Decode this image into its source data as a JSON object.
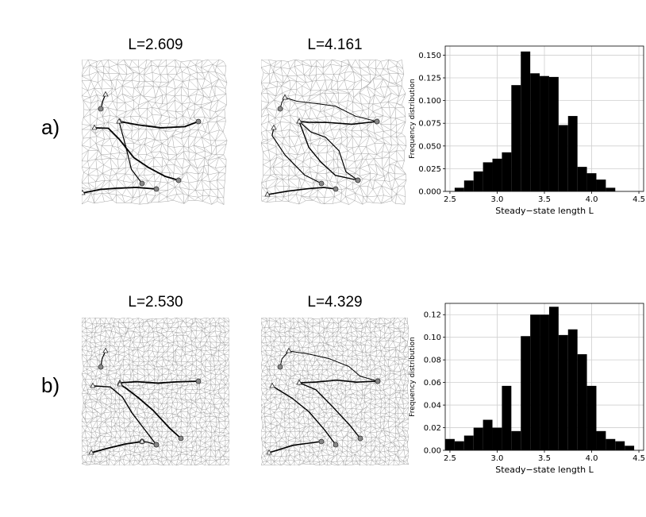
{
  "rows": [
    {
      "label": "a)",
      "panels": [
        {
          "title": "L=2.609"
        },
        {
          "title": "L=4.161"
        }
      ]
    },
    {
      "label": "b)",
      "panels": [
        {
          "title": "L=2.530"
        },
        {
          "title": "L=4.329"
        }
      ]
    }
  ],
  "chart_data": [
    {
      "type": "bar",
      "xlabel": "Steady−state length L",
      "ylabel": "Frequency distribution",
      "xlim": [
        2.45,
        4.55
      ],
      "ylim": [
        0,
        0.16
      ],
      "xticks": [
        "2.5",
        "3.0",
        "3.5",
        "4.0",
        "4.5"
      ],
      "yticks": [
        "0.000",
        "0.025",
        "0.050",
        "0.075",
        "0.100",
        "0.125",
        "0.150"
      ],
      "grid": true,
      "bar_color": "#000000",
      "bins": [
        2.6,
        2.7,
        2.8,
        2.9,
        3.0,
        3.1,
        3.2,
        3.3,
        3.4,
        3.5,
        3.6,
        3.7,
        3.8,
        3.9,
        4.0,
        4.1,
        4.2
      ],
      "values": [
        0.004,
        0.012,
        0.022,
        0.032,
        0.036,
        0.043,
        0.117,
        0.154,
        0.13,
        0.127,
        0.126,
        0.073,
        0.083,
        0.027,
        0.02,
        0.013,
        0.004
      ]
    },
    {
      "type": "bar",
      "xlabel": "Steady−state length L",
      "ylabel": "Frequency distribution",
      "xlim": [
        2.45,
        4.55
      ],
      "ylim": [
        0,
        0.13
      ],
      "xticks": [
        "2.5",
        "3.0",
        "3.5",
        "4.0",
        "4.5"
      ],
      "yticks": [
        "0.00",
        "0.02",
        "0.04",
        "0.06",
        "0.08",
        "0.10",
        "0.12"
      ],
      "grid": true,
      "bar_color": "#000000",
      "bins": [
        2.5,
        2.6,
        2.7,
        2.8,
        2.9,
        3.0,
        3.1,
        3.2,
        3.3,
        3.4,
        3.5,
        3.6,
        3.7,
        3.8,
        3.9,
        4.0,
        4.1,
        4.2,
        4.3,
        4.4
      ],
      "values": [
        0.01,
        0.008,
        0.013,
        0.02,
        0.027,
        0.02,
        0.057,
        0.017,
        0.101,
        0.12,
        0.12,
        0.127,
        0.102,
        0.107,
        0.085,
        0.057,
        0.017,
        0.01,
        0.008,
        0.004
      ]
    }
  ]
}
